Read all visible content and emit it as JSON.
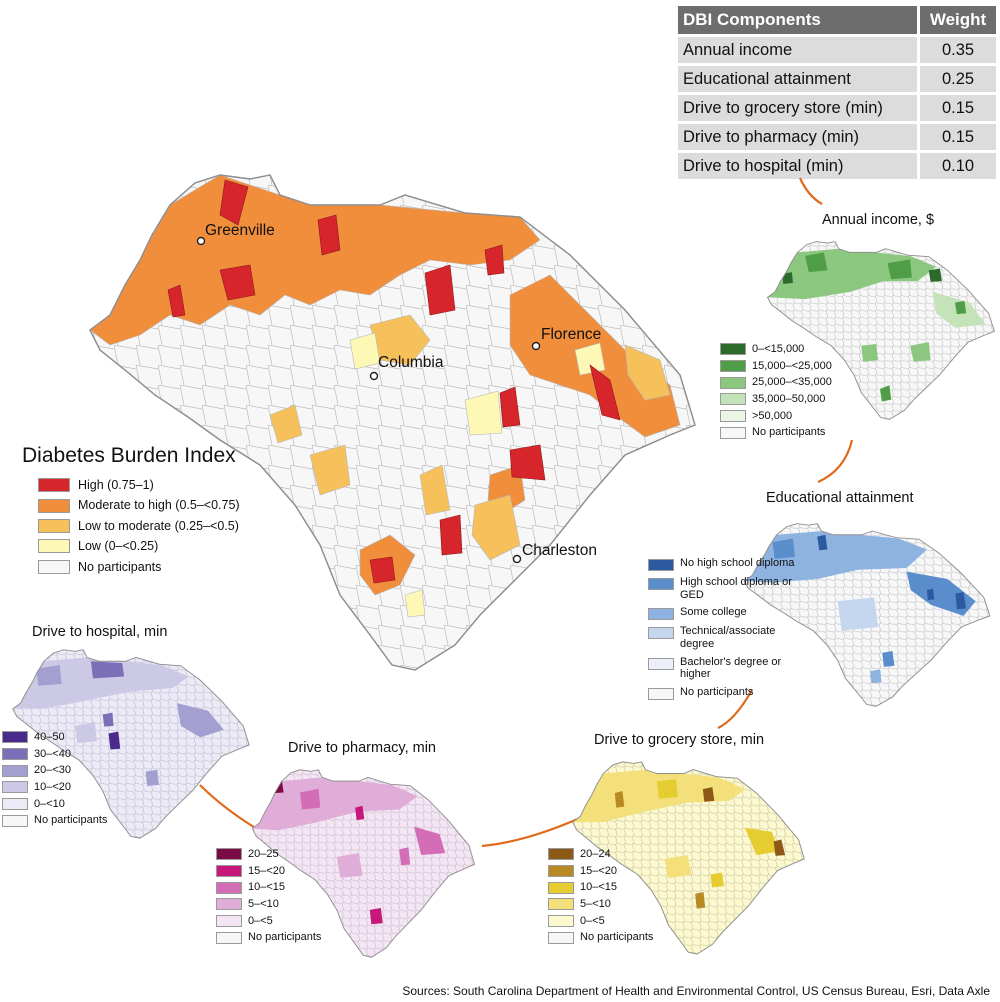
{
  "components_table": {
    "headers": [
      "DBI Components",
      "Weight"
    ],
    "rows": [
      {
        "component": "Annual income",
        "weight": "0.35"
      },
      {
        "component": "Educational attainment",
        "weight": "0.25"
      },
      {
        "component": "Drive to grocery store (min)",
        "weight": "0.15"
      },
      {
        "component": "Drive to pharmacy (min)",
        "weight": "0.15"
      },
      {
        "component": "Drive to hospital (min)",
        "weight": "0.10"
      }
    ]
  },
  "main_map": {
    "title": "Diabetes Burden Index",
    "cities": [
      "Greenville",
      "Florence",
      "Columbia",
      "Charleston"
    ],
    "legend": [
      {
        "label": "High (0.75–1)",
        "color": "#d7262b"
      },
      {
        "label": "Moderate to high (0.5–<0.75)",
        "color": "#f08e3c"
      },
      {
        "label": "Low to moderate (0.25–<0.5)",
        "color": "#f6c05a"
      },
      {
        "label": "Low (0–<0.25)",
        "color": "#fdf8b6"
      },
      {
        "label": "No participants",
        "color": "#f7f7f7"
      }
    ]
  },
  "income_map": {
    "title": "Annual income, $",
    "legend": [
      {
        "label": "0–<15,000",
        "color": "#2b6a2b"
      },
      {
        "label": "15,000–<25,000",
        "color": "#4f9e47"
      },
      {
        "label": "25,000–<35,000",
        "color": "#8cc77f"
      },
      {
        "label": "35,000–50,000",
        "color": "#c5e3b8"
      },
      {
        "label": ">50,000",
        "color": "#eaf5e4"
      },
      {
        "label": "No participants",
        "color": "#f7f7f7"
      }
    ]
  },
  "education_map": {
    "title": "Educational attainment",
    "legend": [
      {
        "label": "No high school diploma",
        "color": "#2c5aa0"
      },
      {
        "label": "High school diploma or GED",
        "color": "#5a8dcc"
      },
      {
        "label": "Some college",
        "color": "#8fb3e0"
      },
      {
        "label": "Technical/associate degree",
        "color": "#c5d7ef"
      },
      {
        "label": "Bachelor's degree or higher",
        "color": "#eceff9"
      },
      {
        "label": "No participants",
        "color": "#f7f7f7"
      }
    ]
  },
  "grocery_map": {
    "title": "Drive to grocery store, min",
    "legend": [
      {
        "label": "20–24",
        "color": "#8c5a16"
      },
      {
        "label": "15–<20",
        "color": "#b88a24"
      },
      {
        "label": "10–<15",
        "color": "#e5cc30"
      },
      {
        "label": "5–<10",
        "color": "#f4e07a"
      },
      {
        "label": "0–<5",
        "color": "#fcf8cf"
      },
      {
        "label": "No participants",
        "color": "#f7f7f7"
      }
    ]
  },
  "pharmacy_map": {
    "title": "Drive to pharmacy, min",
    "legend": [
      {
        "label": "20–25",
        "color": "#7a0b45"
      },
      {
        "label": "15–<20",
        "color": "#c5187a"
      },
      {
        "label": "10–<15",
        "color": "#d36eb6"
      },
      {
        "label": "5–<10",
        "color": "#e0acd8"
      },
      {
        "label": "0–<5",
        "color": "#f3e5f4"
      },
      {
        "label": "No participants",
        "color": "#f7f7f7"
      }
    ]
  },
  "hospital_map": {
    "title": "Drive to hospital, min",
    "legend": [
      {
        "label": "40–50",
        "color": "#4a2b8c"
      },
      {
        "label": "30–<40",
        "color": "#7b70b8"
      },
      {
        "label": "20–<30",
        "color": "#a39fd0"
      },
      {
        "label": "10–<20",
        "color": "#cbc9e6"
      },
      {
        "label": "0–<10",
        "color": "#eceaf6"
      },
      {
        "label": "No participants",
        "color": "#f7f7f7"
      }
    ]
  },
  "source": "Sources: South Carolina Department of Health and Environmental Control, US Census Bureau, Esri, Data Axle"
}
